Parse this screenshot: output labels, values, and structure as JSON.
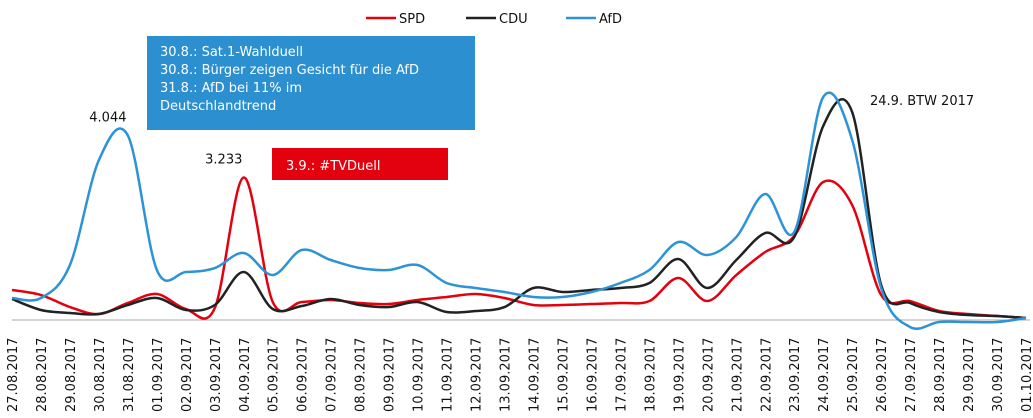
{
  "chart_data": {
    "type": "line",
    "categories": [
      "27.08.2017",
      "28.08.2017",
      "29.08.2017",
      "30.08.2017",
      "31.08.2017",
      "01.09.2017",
      "02.09.2017",
      "03.09.2017",
      "04.09.2017",
      "05.09.2017",
      "06.09.2017",
      "07.09.2017",
      "08.09.2017",
      "09.09.2017",
      "10.09.2017",
      "11.09.2017",
      "12.09.2017",
      "13.09.2017",
      "14.09.2017",
      "15.09.2017",
      "16.09.2017",
      "17.09.2017",
      "18.09.2017",
      "19.09.2017",
      "20.09.2017",
      "21.09.2017",
      "22.09.2017",
      "23.09.2017",
      "24.09.2017",
      "25.09.2017",
      "26.09.2017",
      "27.09.2017",
      "28.09.2017",
      "29.09.2017",
      "30.09.2017",
      "01.10.2017"
    ],
    "series": [
      {
        "name": "SPD",
        "color": "#e3000f",
        "values": [
          1062,
          965,
          733,
          598,
          811,
          984,
          695,
          714,
          3233,
          830,
          830,
          869,
          811,
          791,
          869,
          926,
          984,
          907,
          772,
          772,
          791,
          811,
          849,
          1293,
          849,
          1351,
          1795,
          2104,
          3146,
          2702,
          965,
          849,
          656,
          598,
          560,
          521
        ],
        "value_labels": [
          null,
          null,
          null,
          null,
          null,
          null,
          null,
          null,
          "3.233",
          null,
          null,
          null,
          null,
          null,
          null,
          null,
          null,
          null,
          null,
          null,
          null,
          null,
          null,
          null,
          null,
          null,
          null,
          null,
          null,
          null,
          null,
          null,
          null,
          null,
          null,
          null
        ]
      },
      {
        "name": "CDU",
        "color": "#222222",
        "values": [
          888,
          676,
          618,
          598,
          772,
          907,
          676,
          772,
          1409,
          695,
          753,
          888,
          772,
          733,
          830,
          637,
          656,
          733,
          1100,
          1023,
          1062,
          1100,
          1197,
          1660,
          1100,
          1641,
          2162,
          2084,
          4227,
          4497,
          1158,
          811,
          637,
          579,
          560,
          521
        ]
      },
      {
        "name": "AfD",
        "color": "#2b93d6",
        "values": [
          907,
          907,
          1544,
          3571,
          4044,
          1448,
          1409,
          1486,
          1776,
          1351,
          1834,
          1641,
          1486,
          1448,
          1544,
          1197,
          1100,
          1023,
          926,
          926,
          1023,
          1197,
          1448,
          1988,
          1737,
          2084,
          2914,
          2181,
          4786,
          3957,
          1100,
          347,
          444,
          444,
          444,
          521
        ],
        "value_labels": [
          null,
          null,
          null,
          null,
          "4.044",
          null,
          null,
          null,
          null,
          null,
          null,
          null,
          null,
          null,
          null,
          null,
          null,
          null,
          null,
          null,
          null,
          null,
          null,
          null,
          null,
          null,
          null,
          null,
          null,
          null,
          null,
          null,
          null,
          null,
          null,
          null
        ]
      }
    ],
    "ylim": [
      0,
      5000
    ],
    "legend": "top",
    "boxes": [
      {
        "color": "#2b8fd0",
        "lines": [
          "30.8.: Sat.1-Wahlduell",
          "30.8.: Bürger zeigen Gesicht für die AfD",
          "31.8.: AfD bei 11% im",
          "Deutschlandtrend"
        ]
      },
      {
        "color": "#e3000f",
        "lines": [
          "3.9.: #TVDuell"
        ]
      }
    ],
    "annotations": [
      "24.9. BTW 2017"
    ]
  }
}
